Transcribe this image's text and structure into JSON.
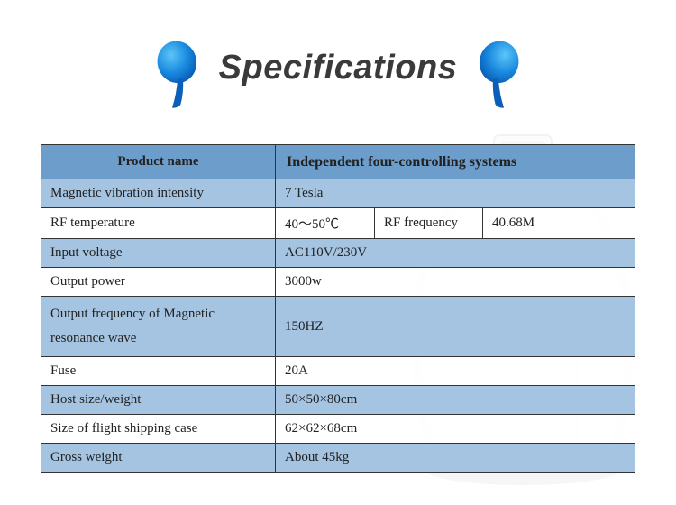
{
  "header": {
    "title": "Specifications",
    "title_color": "#3a3a3a",
    "title_fontsize": 38,
    "paddle_gradient_top": "#2aa9f3",
    "paddle_gradient_bottom": "#0b5fb8",
    "handle_color": "#0b5fb8"
  },
  "table": {
    "border_color": "#333333",
    "header_bg": "#6d9ecb",
    "row_blue_bg": "#a5c4e1",
    "row_white_bg": "#ffffff",
    "font_family": "Times New Roman",
    "label_fontsize": 15,
    "header_label": "Product name",
    "header_value": "Independent four-controlling systems",
    "rows": [
      {
        "label": "Magnetic vibration intensity",
        "value": "7 Tesla",
        "shade": "blue"
      },
      {
        "label": "RF temperature",
        "value_a": "40～50℃",
        "sub_label": "RF frequency",
        "value_b": "40.68M",
        "shade": "white",
        "split": true
      },
      {
        "label": "Input voltage",
        "value": "AC110V/230V",
        "shade": "blue"
      },
      {
        "label": "Output power",
        "value": "3000w",
        "shade": "white"
      },
      {
        "label": "Output frequency of Magnetic resonance wave",
        "value": "150HZ",
        "shade": "blue",
        "tall": true
      },
      {
        "label": "Fuse",
        "value": "20A",
        "shade": "white"
      },
      {
        "label": "Host size/weight",
        "value": "50×50×80cm",
        "shade": "blue"
      },
      {
        "label": "Size of flight shipping case",
        "value": "62×62×68cm",
        "shade": "white"
      },
      {
        "label": "Gross weight",
        "value": "About  45kg",
        "shade": "blue"
      }
    ]
  },
  "background_device": {
    "body_color": "#d8dde2",
    "outline_color": "#888888"
  }
}
